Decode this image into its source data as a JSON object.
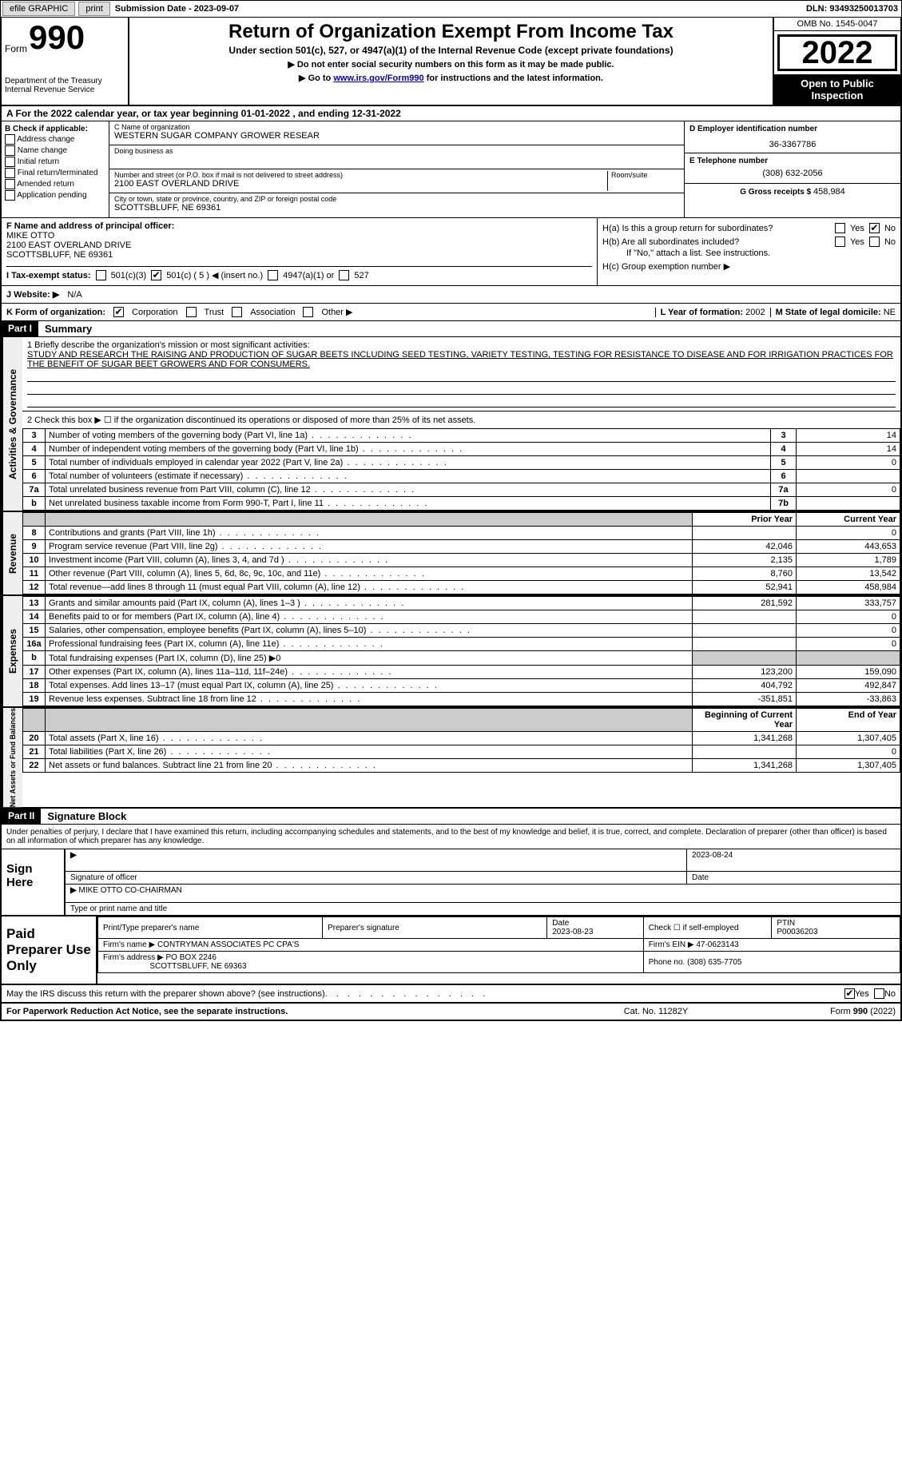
{
  "topbar": {
    "efile": "efile GRAPHIC",
    "print": "print",
    "sub_label": "Submission Date - 2023-09-07",
    "dln_label": "DLN: 93493250013703"
  },
  "header": {
    "form_word": "Form",
    "form_no": "990",
    "dept": "Department of the Treasury\nInternal Revenue Service",
    "title": "Return of Organization Exempt From Income Tax",
    "subtitle": "Under section 501(c), 527, or 4947(a)(1) of the Internal Revenue Code (except private foundations)",
    "arrow1": "▶ Do not enter social security numbers on this form as it may be made public.",
    "arrow2_pre": "▶ Go to ",
    "arrow2_link": "www.irs.gov/Form990",
    "arrow2_post": " for instructions and the latest information.",
    "omb": "OMB No. 1545-0047",
    "year": "2022",
    "open": "Open to Public Inspection"
  },
  "row_a": "A For the 2022 calendar year, or tax year beginning 01-01-2022    , and ending 12-31-2022",
  "col_b": {
    "header": "B Check if applicable:",
    "opts": [
      "Address change",
      "Name change",
      "Initial return",
      "Final return/terminated",
      "Amended return",
      "Application pending"
    ]
  },
  "col_c": {
    "name_lbl": "C Name of organization",
    "name": "WESTERN SUGAR COMPANY GROWER RESEAR",
    "dba_lbl": "Doing business as",
    "dba": "",
    "addr_lbl": "Number and street (or P.O. box if mail is not delivered to street address)",
    "room_lbl": "Room/suite",
    "addr": "2100 EAST OVERLAND DRIVE",
    "city_lbl": "City or town, state or province, country, and ZIP or foreign postal code",
    "city": "SCOTTSBLUFF, NE  69361"
  },
  "col_de": {
    "d_lbl": "D Employer identification number",
    "d_val": "36-3367786",
    "e_lbl": "E Telephone number",
    "e_val": "(308) 632-2056",
    "g_lbl": "G Gross receipts $ ",
    "g_val": "458,984"
  },
  "sec_f": {
    "lbl": "F Name and address of principal officer:",
    "name": "MIKE OTTO",
    "addr1": "2100 EAST OVERLAND DRIVE",
    "addr2": "SCOTTSBLUFF, NE  69361"
  },
  "sec_h": {
    "ha": "H(a)  Is this a group return for subordinates?",
    "hb": "H(b)  Are all subordinates included?",
    "hb_note": "If \"No,\" attach a list. See instructions.",
    "hc": "H(c)  Group exemption number ▶",
    "yes": "Yes",
    "no": "No"
  },
  "tax_status": {
    "lbl": "I   Tax-exempt status:",
    "o1": "501(c)(3)",
    "o2": "501(c) ( 5 ) ◀ (insert no.)",
    "o3": "4947(a)(1) or",
    "o4": "527"
  },
  "website": {
    "lbl": "J   Website: ▶",
    "val": "N/A"
  },
  "row_k": {
    "lbl": "K Form of organization:",
    "o1": "Corporation",
    "o2": "Trust",
    "o3": "Association",
    "o4": "Other ▶",
    "l_lbl": "L Year of formation: ",
    "l_val": "2002",
    "m_lbl": "M State of legal domicile: ",
    "m_val": "NE"
  },
  "part1": {
    "hdr": "Part I",
    "title": "Summary",
    "mission_lbl": "1   Briefly describe the organization's mission or most significant activities:",
    "mission": "STUDY AND RESEARCH THE RAISING AND PRODUCTION OF SUGAR BEETS INCLUDING SEED TESTING, VARIETY TESTING, TESTING FOR RESISTANCE TO DISEASE AND FOR IRRIGATION PRACTICES FOR THE BENEFIT OF SUGAR BEET GROWERS AND FOR CONSUMERS.",
    "line2": "2   Check this box ▶ ☐  if the organization discontinued its operations or disposed of more than 25% of its net assets.",
    "vtab_ag": "Activities & Governance",
    "vtab_rev": "Revenue",
    "vtab_exp": "Expenses",
    "vtab_na": "Net Assets or Fund Balances",
    "prior": "Prior Year",
    "current": "Current Year",
    "beg": "Beginning of Current Year",
    "end": "End of Year",
    "rows_ag": [
      {
        "n": "3",
        "d": "Number of voting members of the governing body (Part VI, line 1a)",
        "box": "3",
        "v": "14"
      },
      {
        "n": "4",
        "d": "Number of independent voting members of the governing body (Part VI, line 1b)",
        "box": "4",
        "v": "14"
      },
      {
        "n": "5",
        "d": "Total number of individuals employed in calendar year 2022 (Part V, line 2a)",
        "box": "5",
        "v": "0"
      },
      {
        "n": "6",
        "d": "Total number of volunteers (estimate if necessary)",
        "box": "6",
        "v": ""
      },
      {
        "n": "7a",
        "d": "Total unrelated business revenue from Part VIII, column (C), line 12",
        "box": "7a",
        "v": "0"
      },
      {
        "n": "b",
        "d": "Net unrelated business taxable income from Form 990-T, Part I, line 11",
        "box": "7b",
        "v": ""
      }
    ],
    "rows_rev": [
      {
        "n": "8",
        "d": "Contributions and grants (Part VIII, line 1h)",
        "p": "",
        "c": "0"
      },
      {
        "n": "9",
        "d": "Program service revenue (Part VIII, line 2g)",
        "p": "42,046",
        "c": "443,653"
      },
      {
        "n": "10",
        "d": "Investment income (Part VIII, column (A), lines 3, 4, and 7d )",
        "p": "2,135",
        "c": "1,789"
      },
      {
        "n": "11",
        "d": "Other revenue (Part VIII, column (A), lines 5, 6d, 8c, 9c, 10c, and 11e)",
        "p": "8,760",
        "c": "13,542"
      },
      {
        "n": "12",
        "d": "Total revenue—add lines 8 through 11 (must equal Part VIII, column (A), line 12)",
        "p": "52,941",
        "c": "458,984"
      }
    ],
    "rows_exp": [
      {
        "n": "13",
        "d": "Grants and similar amounts paid (Part IX, column (A), lines 1–3 )",
        "p": "281,592",
        "c": "333,757"
      },
      {
        "n": "14",
        "d": "Benefits paid to or for members (Part IX, column (A), line 4)",
        "p": "",
        "c": "0"
      },
      {
        "n": "15",
        "d": "Salaries, other compensation, employee benefits (Part IX, column (A), lines 5–10)",
        "p": "",
        "c": "0"
      },
      {
        "n": "16a",
        "d": "Professional fundraising fees (Part IX, column (A), line 11e)",
        "p": "",
        "c": "0"
      },
      {
        "n": "b",
        "d": "Total fundraising expenses (Part IX, column (D), line 25) ▶0",
        "shade": true
      },
      {
        "n": "17",
        "d": "Other expenses (Part IX, column (A), lines 11a–11d, 11f–24e)",
        "p": "123,200",
        "c": "159,090"
      },
      {
        "n": "18",
        "d": "Total expenses. Add lines 13–17 (must equal Part IX, column (A), line 25)",
        "p": "404,792",
        "c": "492,847"
      },
      {
        "n": "19",
        "d": "Revenue less expenses. Subtract line 18 from line 12",
        "p": "-351,851",
        "c": "-33,863"
      }
    ],
    "rows_na": [
      {
        "n": "20",
        "d": "Total assets (Part X, line 16)",
        "p": "1,341,268",
        "c": "1,307,405"
      },
      {
        "n": "21",
        "d": "Total liabilities (Part X, line 26)",
        "p": "",
        "c": "0"
      },
      {
        "n": "22",
        "d": "Net assets or fund balances. Subtract line 21 from line 20",
        "p": "1,341,268",
        "c": "1,307,405"
      }
    ]
  },
  "part2": {
    "hdr": "Part II",
    "title": "Signature Block",
    "penalty": "Under penalties of perjury, I declare that I have examined this return, including accompanying schedules and statements, and to the best of my knowledge and belief, it is true, correct, and complete. Declaration of preparer (other than officer) is based on all information of which preparer has any knowledge.",
    "sign_here": "Sign Here",
    "sig_lbl": "Signature of officer",
    "date_lbl": "Date",
    "sig_date": "2023-08-24",
    "name_lbl": "Type or print name and title",
    "name_val": "MIKE OTTO  CO-CHAIRMAN",
    "paid": "Paid Preparer Use Only",
    "prep_name_lbl": "Print/Type preparer's name",
    "prep_sig_lbl": "Preparer's signature",
    "prep_date_lbl": "Date",
    "prep_date": "2023-08-23",
    "check_self": "Check ☐ if self-employed",
    "ptin_lbl": "PTIN",
    "ptin": "P00036203",
    "firm_name_lbl": "Firm's name      ▶",
    "firm_name": "CONTRYMAN ASSOCIATES PC CPA'S",
    "firm_ein_lbl": "Firm's EIN ▶",
    "firm_ein": "47-0623143",
    "firm_addr_lbl": "Firm's address ▶",
    "firm_addr1": "PO BOX 2246",
    "firm_addr2": "SCOTTSBLUFF, NE  69363",
    "phone_lbl": "Phone no.",
    "phone": "(308) 635-7705",
    "discuss": "May the IRS discuss this return with the preparer shown above? (see instructions)",
    "yes": "Yes",
    "no": "No"
  },
  "footer": {
    "pra": "For Paperwork Reduction Act Notice, see the separate instructions.",
    "cat": "Cat. No. 11282Y",
    "form": "Form 990 (2022)"
  },
  "colors": {
    "bg": "#ffffff",
    "border": "#000000",
    "shade": "#cccccc",
    "vtab_bg": "#eeeeee",
    "link": "#0000cc"
  }
}
